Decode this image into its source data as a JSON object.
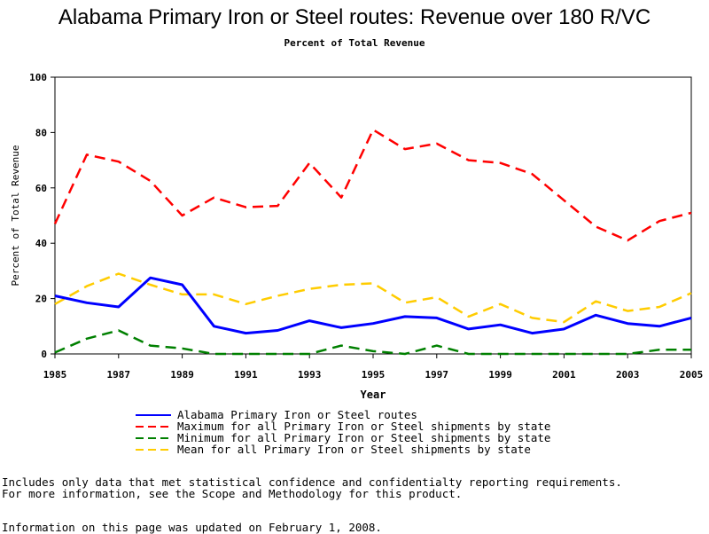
{
  "chart_data": {
    "type": "line",
    "title": "Alabama Primary Iron or Steel routes: Revenue over 180 R/VC",
    "subtitle": "Percent of Total Revenue",
    "xlabel": "Year",
    "ylabel": "Percent of Total Revenue",
    "xlim": [
      1985,
      2005
    ],
    "ylim": [
      0,
      100
    ],
    "x_ticks": [
      "1985",
      "1987",
      "1989",
      "1991",
      "1993",
      "1995",
      "1997",
      "1999",
      "2001",
      "2003",
      "2005"
    ],
    "y_ticks": [
      "0",
      "20",
      "40",
      "60",
      "80",
      "100"
    ],
    "x": [
      1985,
      1986,
      1987,
      1988,
      1989,
      1990,
      1991,
      1992,
      1993,
      1994,
      1995,
      1996,
      1997,
      1998,
      1999,
      2000,
      2001,
      2002,
      2003,
      2004,
      2005
    ],
    "grid": false,
    "legend_position": "bottom",
    "series": [
      {
        "name": "Alabama Primary Iron or Steel routes",
        "color": "#0000ff",
        "style": "solid",
        "values": [
          21,
          18.5,
          17,
          27.5,
          25,
          10,
          7.5,
          8.5,
          12,
          9.5,
          11,
          13.5,
          13,
          9,
          10.5,
          7.5,
          9,
          14,
          11,
          10,
          13
        ]
      },
      {
        "name": "Maximum for all Primary Iron or Steel shipments by state",
        "color": "#ff0000",
        "style": "dashed",
        "values": [
          47,
          72,
          69.5,
          62.5,
          50,
          56.5,
          53,
          53.5,
          69,
          56.5,
          81,
          74,
          76,
          70,
          69,
          65,
          55.5,
          46,
          41,
          48,
          51
        ]
      },
      {
        "name": "Minimum for all Primary Iron or Steel shipments by state",
        "color": "#008000",
        "style": "dashed",
        "values": [
          0.5,
          5.5,
          8.5,
          3,
          2,
          0,
          0,
          0,
          0,
          3,
          1,
          0,
          3,
          0,
          0,
          0,
          0,
          0,
          0,
          1.5,
          1.5
        ]
      },
      {
        "name": "Mean for all Primary Iron or Steel shipments by state",
        "color": "#ffcc00",
        "style": "dashed",
        "values": [
          18,
          24.5,
          29,
          25,
          21.5,
          21.5,
          18,
          21,
          23.5,
          25,
          25.5,
          18.5,
          20.5,
          13.5,
          18,
          13,
          11.5,
          19,
          15.5,
          17,
          22
        ]
      }
    ]
  },
  "notes": {
    "line1": "Includes only data that met statistical confidence and confidentialty reporting requirements.",
    "line2": "For more information, see the Scope and Methodology for this product.",
    "updated": "Information on this page was updated on February 1, 2008."
  }
}
